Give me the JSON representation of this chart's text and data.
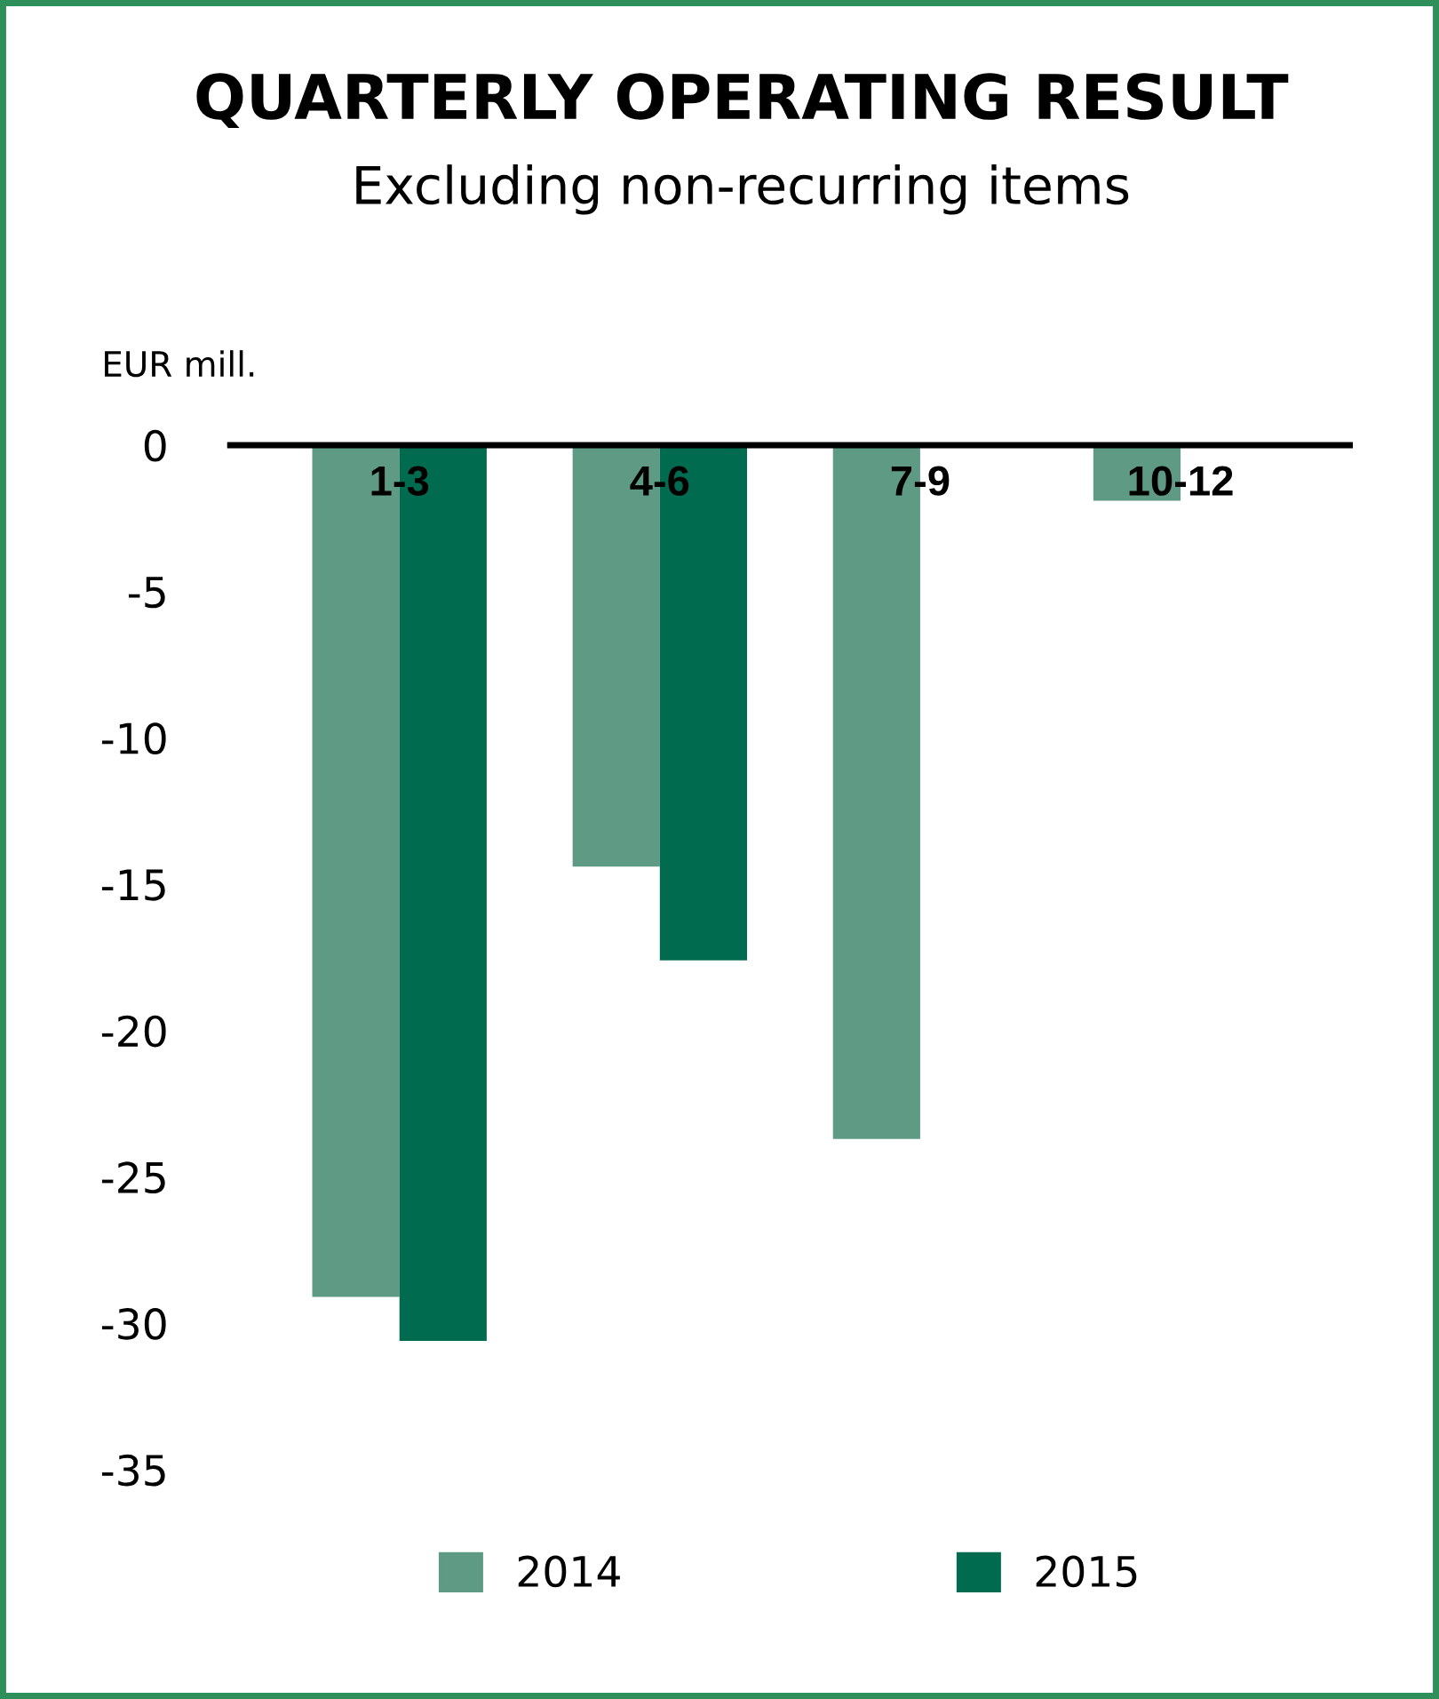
{
  "chart_data": {
    "type": "bar",
    "title": "QUARTERLY OPERATING RESULT",
    "subtitle": "Excluding non-recurring items",
    "ylabel": "EUR mill.",
    "categories": [
      "1-3",
      "4-6",
      "7-9",
      "10-12"
    ],
    "series": [
      {
        "name": "2014",
        "color": "#5f9b84",
        "values": [
          -29.1,
          -14.4,
          -23.7,
          -1.9
        ]
      },
      {
        "name": "2015",
        "color": "#006b4f",
        "values": [
          -30.6,
          -17.6,
          null,
          null
        ]
      }
    ],
    "ylim": [
      -35,
      0
    ],
    "yticks": [
      -35,
      -30,
      -25,
      -20,
      -15,
      -10,
      -5,
      0
    ],
    "grid": false,
    "legend": "bottom"
  }
}
